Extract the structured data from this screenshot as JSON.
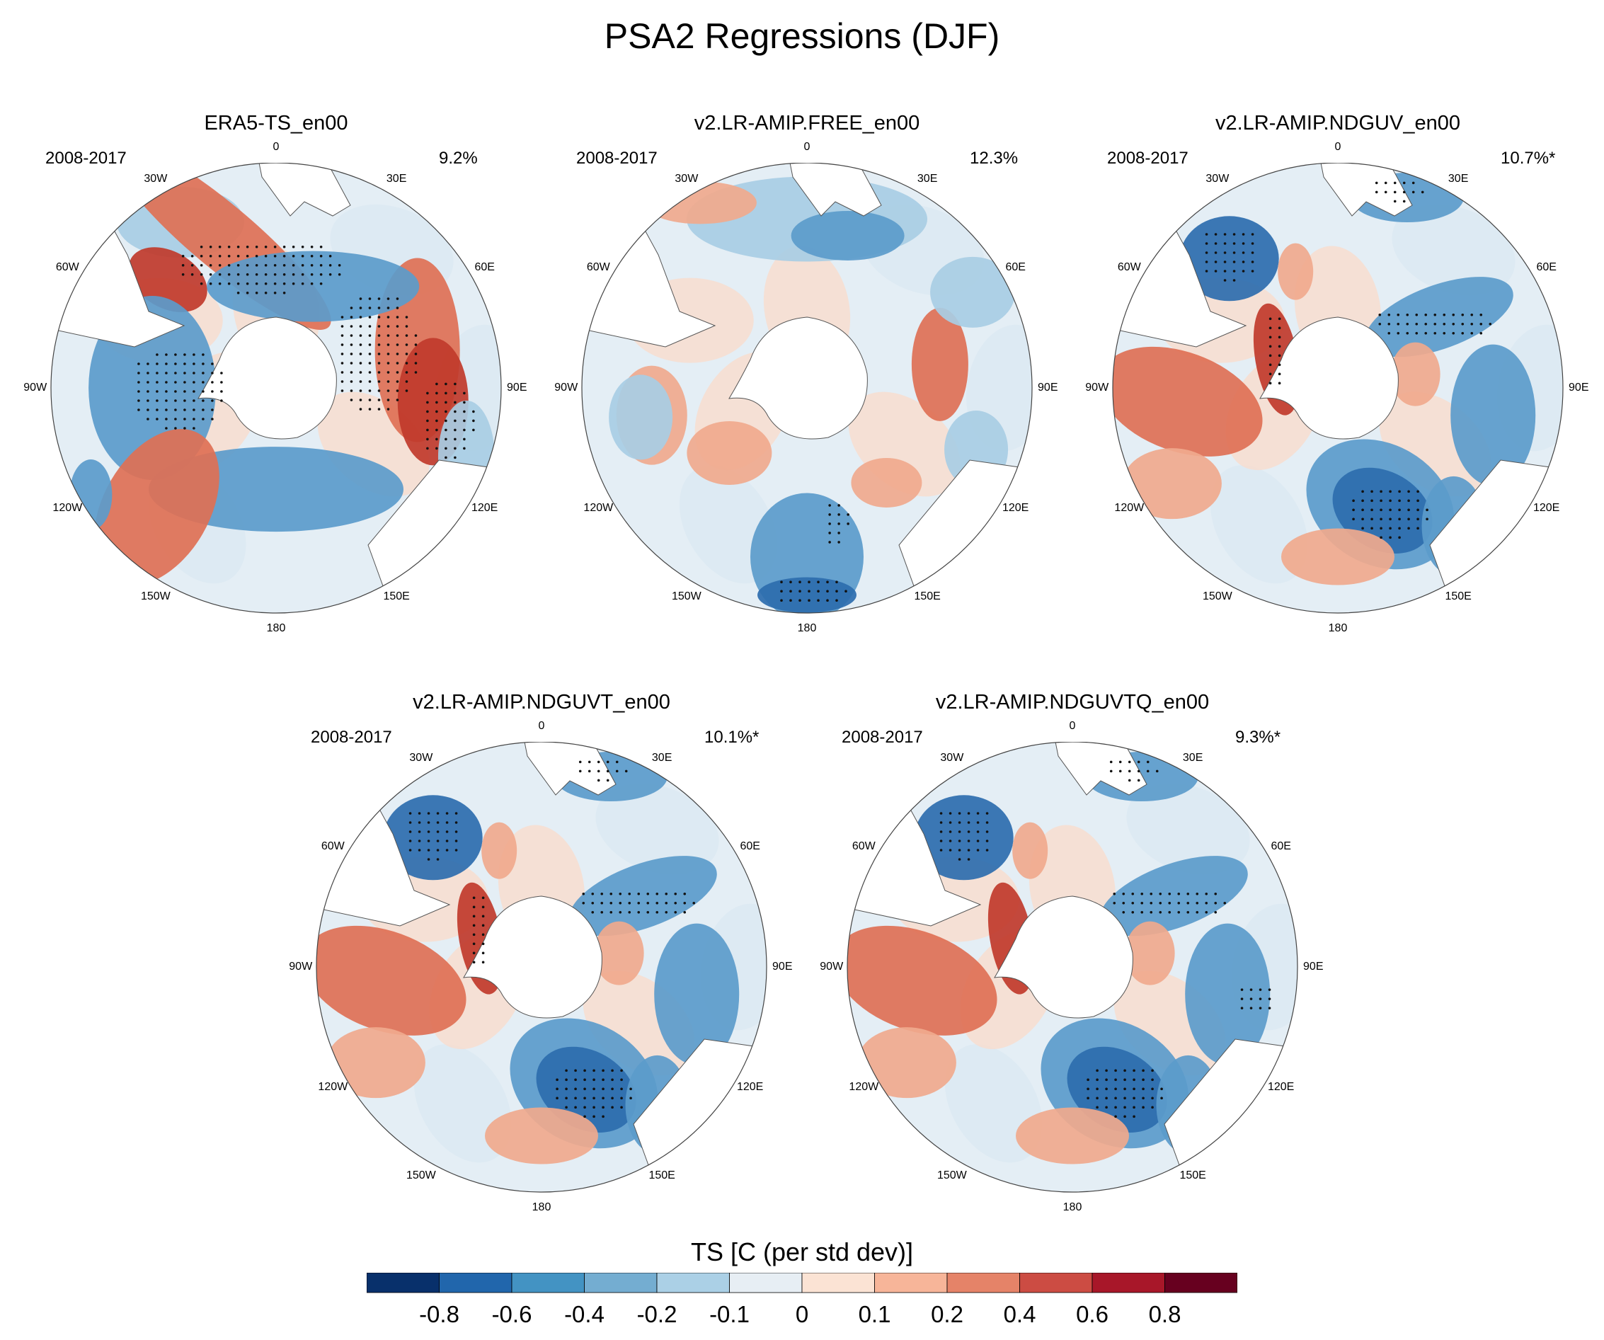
{
  "figure": {
    "title": "PSA2 Regressions (DJF)"
  },
  "panels": [
    {
      "title": "ERA5-TS_en00",
      "period": "2008-2017",
      "variance": "9.2%"
    },
    {
      "title": "v2.LR-AMIP.FREE_en00",
      "period": "2008-2017",
      "variance": "12.3%"
    },
    {
      "title": "v2.LR-AMIP.NDGUV_en00",
      "period": "2008-2017",
      "variance": "10.7%*"
    },
    {
      "title": "v2.LR-AMIP.NDGUVT_en00",
      "period": "2008-2017",
      "variance": "10.1%*"
    },
    {
      "title": "v2.LR-AMIP.NDGUVTQ_en00",
      "period": "2008-2017",
      "variance": "9.3%*"
    }
  ],
  "longitude_labels": [
    "0",
    "30E",
    "60E",
    "90E",
    "120E",
    "150E",
    "180",
    "150W",
    "120W",
    "90W",
    "60W",
    "30W"
  ],
  "colorbar": {
    "title": "TS [C (per std dev)]",
    "ticks": [
      "-0.8",
      "-0.6",
      "-0.4",
      "-0.2",
      "-0.1",
      "0",
      "0.1",
      "0.2",
      "0.4",
      "0.6",
      "0.8"
    ],
    "colors": [
      "#08306b",
      "#2166ac",
      "#4393c3",
      "#74add1",
      "#abd0e6",
      "#e7eef4",
      "#fbe3d4",
      "#f7b599",
      "#e58368",
      "#cc4c43",
      "#a81729",
      "#67001f"
    ]
  },
  "palette": {
    "deep_blue": "#2c6cae",
    "mid_blue": "#5b9bcb",
    "light_blue": "#a8cde4",
    "pale_blue": "#dbe9f3",
    "pale_red": "#f9dccd",
    "light_red": "#f0a98d",
    "mid_red": "#de7055",
    "deep_red": "#c0392b",
    "ocean_neutral": "#e4eef5",
    "land": "#ffffff"
  }
}
